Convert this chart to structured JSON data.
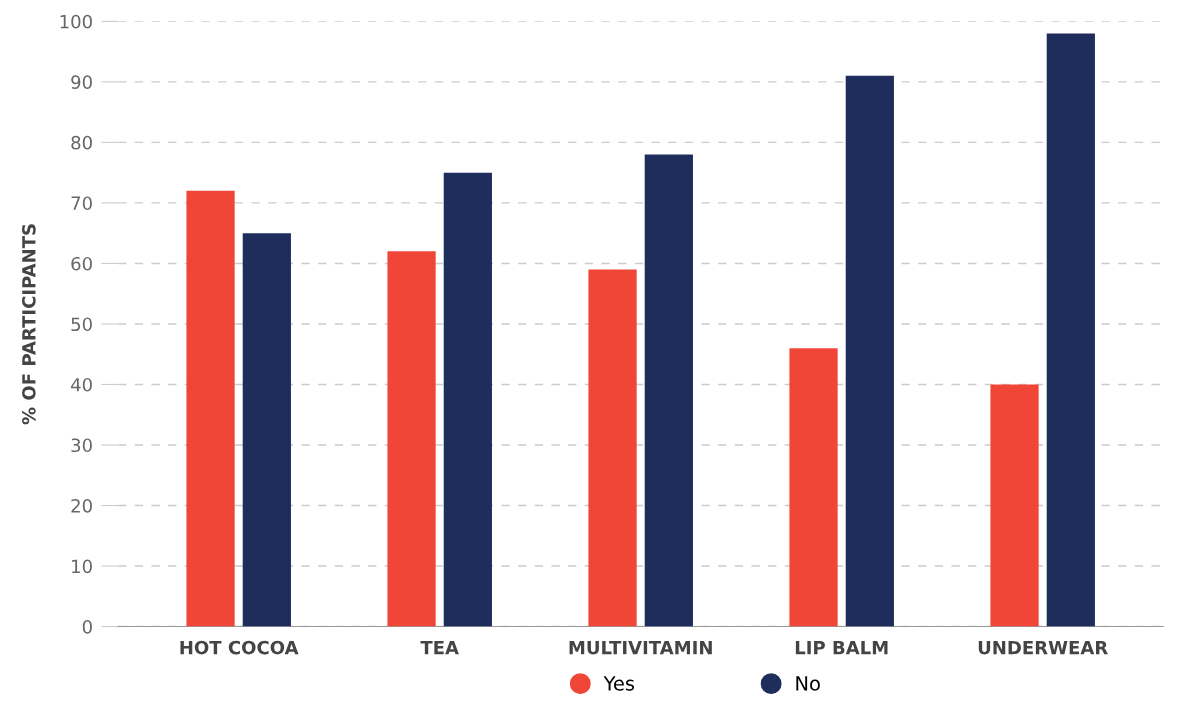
{
  "chart_data": {
    "type": "bar",
    "ylabel": "% OF PARTICIPANTS",
    "categories": [
      "HOT COCOA",
      "TEA",
      "MULTIVITAMIN",
      "LIP BALM",
      "UNDERWEAR"
    ],
    "series": [
      {
        "name": "Yes",
        "color": "#ef4638",
        "values": [
          72,
          62,
          59,
          46,
          40
        ]
      },
      {
        "name": "No",
        "color": "#1e2d5c",
        "values": [
          65,
          75,
          78,
          91,
          98
        ]
      }
    ],
    "ylim": [
      0,
      100
    ],
    "yticks": [
      0,
      10,
      20,
      30,
      40,
      50,
      60,
      70,
      80,
      90,
      100
    ],
    "grid": "y",
    "legend": "bottom",
    "marker": "circle"
  }
}
